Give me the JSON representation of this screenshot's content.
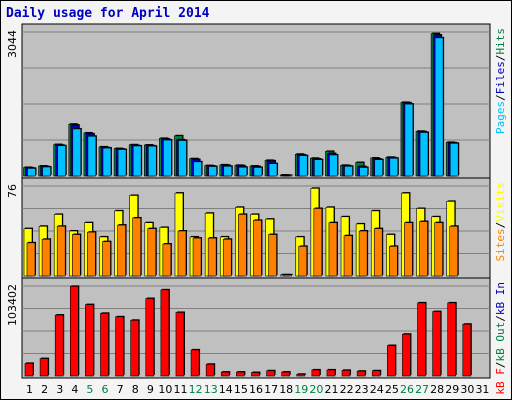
{
  "title": "Daily usage for April 2014",
  "colors": {
    "pages": "#00c0ff",
    "files": "#00c0ff",
    "hits": "#008040",
    "sites": "#ff8000",
    "visits": "#ffff00",
    "kbin": "#0000c0",
    "kbout": "#008040",
    "kbf": "#ff0000",
    "weekday": "#000000",
    "weekend": "#008040"
  },
  "chart_data": [
    {
      "type": "bar",
      "name": "hits-files-pages",
      "ymax_label": "3044",
      "ylim": [
        0,
        3044
      ],
      "legend": [
        {
          "text": "Pages",
          "color": "#00c0ff"
        },
        {
          "text": "/",
          "color": "#000000"
        },
        {
          "text": "Files",
          "color": "#0000c0"
        },
        {
          "text": "/",
          "color": "#000000"
        },
        {
          "text": "Hits",
          "color": "#008040"
        }
      ],
      "x": [
        1,
        2,
        3,
        4,
        5,
        6,
        7,
        8,
        9,
        10,
        11,
        12,
        13,
        14,
        15,
        16,
        17,
        18,
        19,
        20,
        21,
        22,
        23,
        24,
        25,
        26,
        27,
        28,
        29,
        30,
        31
      ],
      "series": [
        {
          "key": "hits",
          "color": "#008040",
          "values": [
            180,
            210,
            665,
            1095,
            910,
            615,
            580,
            660,
            655,
            795,
            850,
            365,
            220,
            235,
            225,
            210,
            330,
            20,
            460,
            375,
            520,
            225,
            285,
            380,
            395,
            1555,
            945,
            3010,
            710,
            0,
            0
          ]
        },
        {
          "key": "files",
          "color": "#0000c0",
          "values": [
            170,
            200,
            650,
            1075,
            890,
            600,
            570,
            645,
            640,
            780,
            765,
            350,
            210,
            225,
            215,
            200,
            320,
            15,
            445,
            360,
            475,
            215,
            200,
            360,
            385,
            1545,
            935,
            2980,
            700,
            0,
            0
          ]
        },
        {
          "key": "pages",
          "color": "#00c0ff",
          "values": [
            160,
            190,
            640,
            995,
            840,
            590,
            560,
            635,
            630,
            760,
            750,
            300,
            200,
            205,
            185,
            180,
            260,
            10,
            430,
            345,
            445,
            205,
            180,
            345,
            375,
            1520,
            920,
            2920,
            690,
            0,
            0
          ]
        }
      ]
    },
    {
      "type": "bar",
      "name": "visits-sites",
      "ymax_label": "76",
      "ylim": [
        0,
        76
      ],
      "legend": [
        {
          "text": "Sites",
          "color": "#ff8000"
        },
        {
          "text": "/",
          "color": "#000000"
        },
        {
          "text": "Visits",
          "color": "#ffff00"
        }
      ],
      "x": [
        1,
        2,
        3,
        4,
        5,
        6,
        7,
        8,
        9,
        10,
        11,
        12,
        13,
        14,
        15,
        16,
        17,
        18,
        19,
        20,
        21,
        22,
        23,
        24,
        25,
        26,
        27,
        28,
        29,
        30,
        31
      ],
      "series": [
        {
          "key": "visits",
          "color": "#ffff00",
          "values": [
            40,
            42,
            52,
            38,
            45,
            33,
            55,
            68,
            45,
            41,
            70,
            33,
            53,
            33,
            58,
            52,
            48,
            1,
            33,
            74,
            58,
            50,
            44,
            55,
            35,
            70,
            57,
            50,
            63,
            0,
            0
          ]
        },
        {
          "key": "sites",
          "color": "#ff8000",
          "values": [
            28,
            31,
            42,
            35,
            37,
            29,
            43,
            49,
            40,
            27,
            38,
            32,
            32,
            31,
            52,
            47,
            35,
            1,
            25,
            57,
            45,
            34,
            38,
            40,
            25,
            45,
            46,
            45,
            42,
            0,
            0
          ]
        }
      ]
    },
    {
      "type": "bar",
      "name": "kbytes",
      "ymax_label": "103402",
      "ylim": [
        0,
        103402
      ],
      "legend": [
        {
          "text": "kB F",
          "color": "#ff0000"
        },
        {
          "text": "/",
          "color": "#000000"
        },
        {
          "text": "kB Out",
          "color": "#008040"
        },
        {
          "text": "/",
          "color": "#000000"
        },
        {
          "text": "kB In",
          "color": "#0000c0"
        }
      ],
      "x": [
        1,
        2,
        3,
        4,
        5,
        6,
        7,
        8,
        9,
        10,
        11,
        12,
        13,
        14,
        15,
        16,
        17,
        18,
        19,
        20,
        21,
        22,
        23,
        24,
        25,
        26,
        27,
        28,
        29,
        30,
        31
      ],
      "series": [
        {
          "key": "kbf",
          "color": "#ff0000",
          "values": [
            14500,
            20000,
            70000,
            103000,
            82000,
            72000,
            68000,
            64000,
            89000,
            99000,
            73000,
            30000,
            13500,
            4500,
            4500,
            4000,
            6000,
            4500,
            2000,
            7000,
            7000,
            6500,
            5500,
            6000,
            35000,
            48000,
            84000,
            74000,
            84000,
            59500,
            0
          ]
        }
      ]
    }
  ],
  "xaxis": {
    "labels": [
      "1",
      "2",
      "3",
      "4",
      "5",
      "6",
      "7",
      "8",
      "9",
      "10",
      "11",
      "12",
      "13",
      "14",
      "15",
      "16",
      "17",
      "18",
      "19",
      "20",
      "21",
      "22",
      "23",
      "24",
      "25",
      "26",
      "27",
      "28",
      "29",
      "30",
      "31"
    ],
    "weekend": [
      5,
      6,
      12,
      13,
      19,
      20,
      26,
      27
    ]
  }
}
